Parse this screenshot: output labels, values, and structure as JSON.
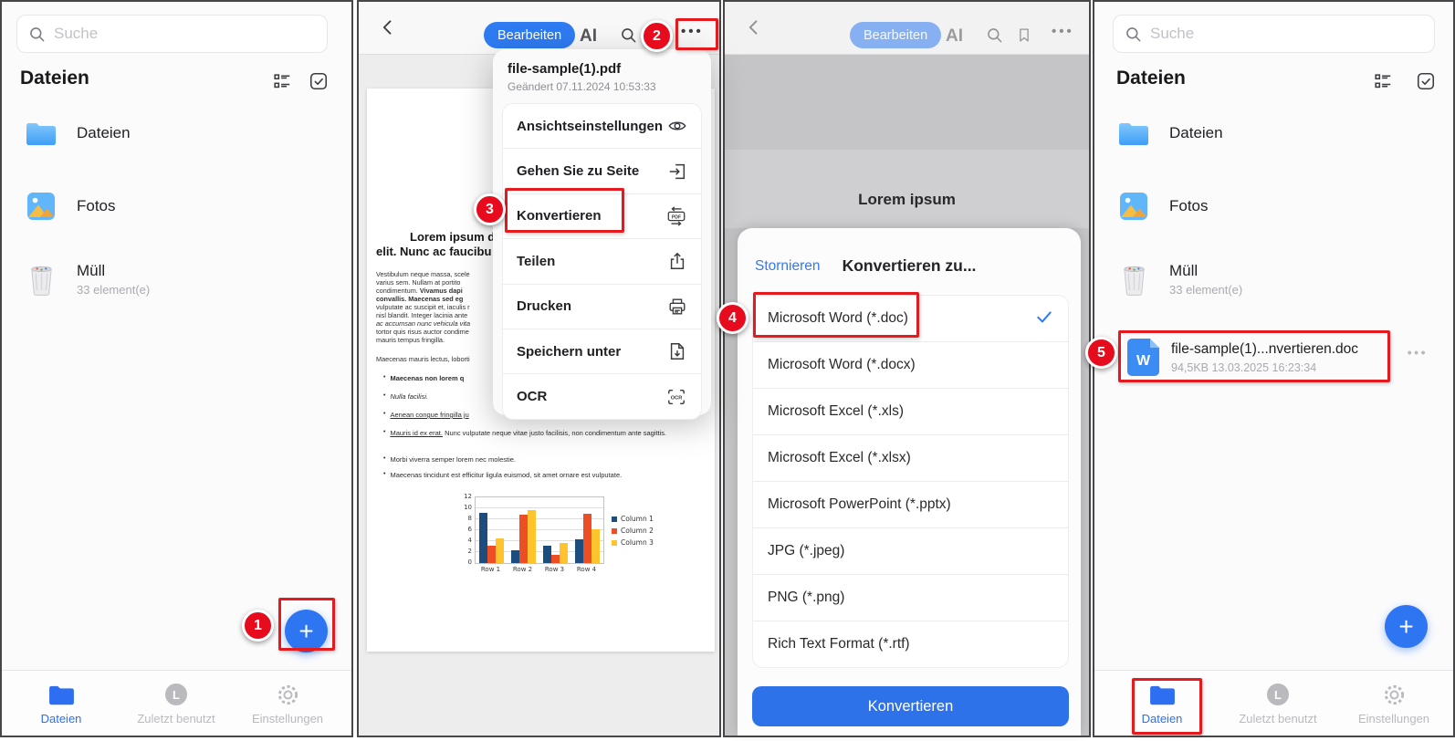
{
  "colors": {
    "accent_blue": "#2e7bf2",
    "button_blue": "#2e72ea",
    "badge_red": "#e60c1e",
    "box_red": "#e51a1f",
    "bar1": "#1b4e7e",
    "bar2": "#ee4e23",
    "bar3": "#fec32d"
  },
  "panel1": {
    "search": {
      "placeholder": "Suche"
    },
    "header": {
      "title": "Dateien"
    },
    "items": [
      {
        "icon": "folder",
        "name": "Dateien",
        "meta": ""
      },
      {
        "icon": "photo",
        "name": "Fotos",
        "meta": ""
      },
      {
        "icon": "trash",
        "name": "Müll",
        "meta": "33 element(e)"
      }
    ],
    "fab": "+",
    "step_badge": "1",
    "nav": [
      {
        "icon": "folder-tab",
        "label": "Dateien",
        "active": true
      },
      {
        "icon": "recent-tab",
        "label": "Zuletzt benutzt",
        "active": false
      },
      {
        "icon": "settings-tab",
        "label": "Einstellungen",
        "active": false
      }
    ]
  },
  "panel2": {
    "toolbar": {
      "edit": "Bearbeiten",
      "ai": "AI",
      "more": "•••"
    },
    "step_badge": "2",
    "menu": {
      "file_name": "file-sample(1).pdf",
      "modified": "Geändert 07.11.2024 10:53:33",
      "step_badge": "3",
      "items": [
        {
          "label": "Ansichtseinstellungen",
          "icon": "eye"
        },
        {
          "label": "Gehen Sie zu Seite",
          "icon": "goto"
        },
        {
          "label": "Konvertieren",
          "icon": "pdf-convert",
          "highlighted": true
        },
        {
          "label": "Teilen",
          "icon": "share"
        },
        {
          "label": "Drucken",
          "icon": "print"
        },
        {
          "label": "Speichern unter",
          "icon": "save-as"
        },
        {
          "label": "OCR",
          "icon": "ocr"
        }
      ]
    },
    "document": {
      "title_lines": [
        "Lorem ipsum dolo",
        "elit. Nunc ac faucibu"
      ],
      "body_lines": [
        [
          {
            "t": "Vestibulum neque massa, scele"
          }
        ],
        [
          {
            "t": "varius sem. Nullam at portito"
          }
        ],
        [
          {
            "t": "condimentum. "
          },
          {
            "t": "Vivamus dapi",
            "s": "b"
          }
        ],
        [
          {
            "t": "convallis. Maecenas sed eg",
            "s": "b"
          }
        ],
        [
          {
            "t": "vulputate ac suscipit et, iaculis r"
          }
        ],
        [
          {
            "t": "nisl blandit. Integer lacinia ante"
          }
        ],
        [
          {
            "t": "ac accumsan nunc vehicula vita",
            "s": "i"
          }
        ],
        [
          {
            "t": "tortor quis risus auctor condime"
          }
        ],
        [
          {
            "t": "mauris tempus fringilla."
          }
        ]
      ],
      "para2": "Maecenas mauris lectus, loborti",
      "bullets": [
        {
          "narrow": true,
          "segs": [
            {
              "t": "Maecenas non lorem q",
              "s": "b"
            }
          ]
        },
        {
          "narrow": true,
          "segs": [
            {
              "t": "Nulla facilisi.",
              "s": "i"
            }
          ]
        },
        {
          "narrow": true,
          "segs": [
            {
              "t": "Aenean congue fringilla ju",
              "s": "u"
            }
          ]
        },
        {
          "segs": [
            {
              "t": "Mauris id ex erat.",
              "s": "u"
            },
            {
              "t": " Nunc vulputate neque vitae justo facilisis, non condimentum ante sagittis."
            }
          ]
        },
        {
          "segs": [
            {
              "t": "Morbi viverra semper lorem nec molestie."
            }
          ]
        },
        {
          "segs": [
            {
              "t": "Maecenas tincidunt est efficitur ligula euismod, sit amet ornare est vulputate."
            }
          ]
        }
      ]
    }
  },
  "chart_data": {
    "type": "bar",
    "categories": [
      "Row 1",
      "Row 2",
      "Row 3",
      "Row 4"
    ],
    "series": [
      {
        "name": "Column 1",
        "color": "#1b4e7e",
        "values": [
          9.1,
          2.4,
          3.1,
          4.4
        ]
      },
      {
        "name": "Column 2",
        "color": "#ee4e23",
        "values": [
          3.2,
          8.8,
          1.5,
          9.0
        ]
      },
      {
        "name": "Column 3",
        "color": "#fec32d",
        "values": [
          4.5,
          9.65,
          3.7,
          6.2
        ]
      }
    ],
    "title": "",
    "xlabel": "",
    "ylabel": "",
    "ylim": [
      0,
      12
    ],
    "yticks": [
      0,
      2,
      4,
      6,
      8,
      10,
      12
    ],
    "grid": true,
    "legend_position": "right"
  },
  "panel3": {
    "toolbar": {
      "edit": "Bearbeiten",
      "ai": "AI",
      "more": "•••"
    },
    "page_title": "Lorem ipsum",
    "sheet": {
      "cancel": "Stornieren",
      "title": "Konvertieren zu...",
      "step_badge": "4",
      "options": [
        {
          "label": "Microsoft Word (*.doc)",
          "selected": true
        },
        {
          "label": "Microsoft Word (*.docx)",
          "selected": false
        },
        {
          "label": "Microsoft Excel (*.xls)",
          "selected": false
        },
        {
          "label": "Microsoft Excel (*.xlsx)",
          "selected": false
        },
        {
          "label": "Microsoft PowerPoint (*.pptx)",
          "selected": false
        },
        {
          "label": "JPG (*.jpeg)",
          "selected": false
        },
        {
          "label": "PNG (*.png)",
          "selected": false
        },
        {
          "label": "Rich Text Format (*.rtf)",
          "selected": false
        }
      ],
      "convert_button": "Konvertieren"
    }
  },
  "panel4": {
    "search": {
      "placeholder": "Suche"
    },
    "header": {
      "title": "Dateien"
    },
    "items": [
      {
        "icon": "folder",
        "name": "Dateien",
        "meta": ""
      },
      {
        "icon": "photo",
        "name": "Fotos",
        "meta": ""
      },
      {
        "icon": "trash",
        "name": "Müll",
        "meta": "33 element(e)"
      }
    ],
    "file_row": {
      "icon_letter": "W",
      "name": "file-sample(1)...nvertieren.doc",
      "meta": "94,5KB 13.03.2025 16:23:34",
      "step_badge": "5"
    },
    "fab": "+",
    "nav": [
      {
        "icon": "folder-tab",
        "label": "Dateien",
        "active": true
      },
      {
        "icon": "recent-tab",
        "label": "Zuletzt benutzt",
        "active": false
      },
      {
        "icon": "settings-tab",
        "label": "Einstellungen",
        "active": false
      }
    ]
  }
}
